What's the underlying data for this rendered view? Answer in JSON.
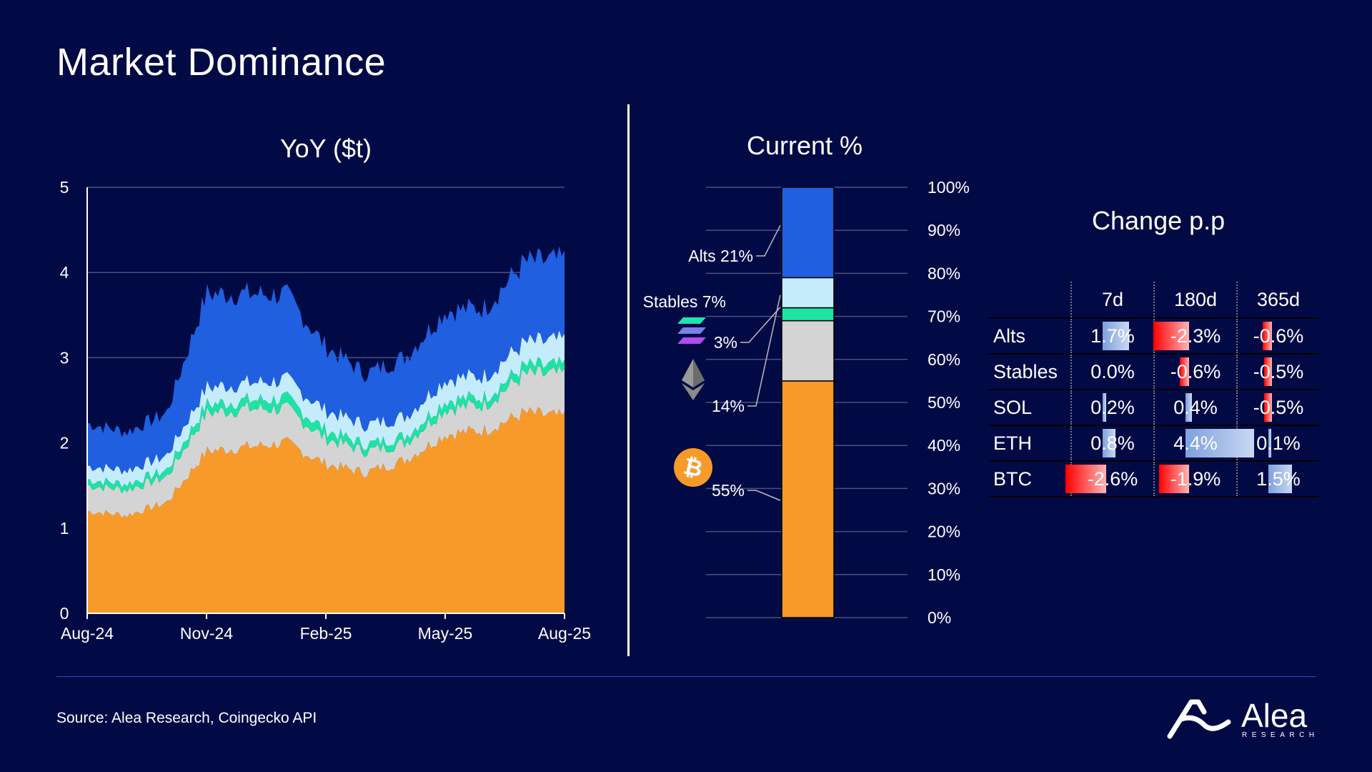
{
  "title": "Market Dominance",
  "source": "Source: Alea Research, Coingecko API",
  "logo": {
    "word": "Alea",
    "sub": "RESEARCH"
  },
  "colors": {
    "background": "#020a45",
    "btc": "#f79a2a",
    "eth": "#d4d4d4",
    "sol": "#1de3a3",
    "stables": "#c5ecfb",
    "alts": "#1f5fe0",
    "neg": "#ff0000",
    "pos": "#7ea1dd"
  },
  "chart_data": [
    {
      "type": "area",
      "title": "YoY ($t)",
      "stacked": true,
      "ylim": [
        0,
        5
      ],
      "yticks": [
        "0",
        "1",
        "2",
        "3",
        "4",
        "5"
      ],
      "xticks": [
        "Aug-24",
        "Nov-24",
        "Feb-25",
        "May-25",
        "Aug-25"
      ],
      "grid": true,
      "x": [
        "Aug-24",
        "Sep-24",
        "Oct-24",
        "Nov-24",
        "Dec-24",
        "Jan-25",
        "Feb-25",
        "Mar-25",
        "Apr-25",
        "May-25",
        "Jun-25",
        "Jul-25",
        "Aug-25"
      ],
      "series": [
        {
          "key": "btc",
          "values": [
            1.2,
            1.15,
            1.3,
            1.9,
            1.95,
            2.0,
            1.75,
            1.65,
            1.8,
            2.1,
            2.15,
            2.35,
            2.3
          ]
        },
        {
          "key": "eth",
          "values": [
            0.3,
            0.3,
            0.3,
            0.45,
            0.45,
            0.4,
            0.3,
            0.25,
            0.2,
            0.3,
            0.3,
            0.45,
            0.5
          ]
        },
        {
          "key": "sol",
          "values": [
            0.07,
            0.07,
            0.08,
            0.1,
            0.1,
            0.12,
            0.1,
            0.08,
            0.08,
            0.1,
            0.09,
            0.1,
            0.1
          ]
        },
        {
          "key": "stables",
          "values": [
            0.16,
            0.16,
            0.17,
            0.2,
            0.2,
            0.22,
            0.23,
            0.23,
            0.23,
            0.25,
            0.25,
            0.27,
            0.3
          ]
        },
        {
          "key": "alts",
          "values": [
            0.5,
            0.45,
            0.5,
            1.1,
            1.05,
            1.0,
            0.75,
            0.6,
            0.7,
            0.8,
            0.8,
            0.95,
            0.95
          ]
        }
      ]
    },
    {
      "type": "bar",
      "title": "Current %",
      "stacked": true,
      "ylim": [
        0,
        100
      ],
      "yticks": [
        "0%",
        "10%",
        "20%",
        "30%",
        "40%",
        "50%",
        "60%",
        "70%",
        "80%",
        "90%",
        "100%"
      ],
      "segments": [
        {
          "key": "btc",
          "value": 55,
          "label": "55%"
        },
        {
          "key": "eth",
          "value": 14,
          "label": "14%"
        },
        {
          "key": "sol",
          "value": 3,
          "label": "3%"
        },
        {
          "key": "stables",
          "value": 7,
          "label": "Stables 7%"
        },
        {
          "key": "alts",
          "value": 21,
          "label": "Alts 21%"
        }
      ]
    },
    {
      "type": "table",
      "title": "Change p.p",
      "columns": [
        "7d",
        "180d",
        "365d"
      ],
      "rows": [
        {
          "label": "Alts",
          "values": [
            1.7,
            -2.3,
            -0.6
          ],
          "text": [
            "1.7%",
            "-2.3%",
            "-0.6%"
          ]
        },
        {
          "label": "Stables",
          "values": [
            0.0,
            -0.6,
            -0.5
          ],
          "text": [
            "0.0%",
            "-0.6%",
            "-0.5%"
          ]
        },
        {
          "label": "SOL",
          "values": [
            0.2,
            0.4,
            -0.5
          ],
          "text": [
            "0.2%",
            "0.4%",
            "-0.5%"
          ]
        },
        {
          "label": "ETH",
          "values": [
            0.8,
            4.4,
            0.1
          ],
          "text": [
            "0.8%",
            "4.4%",
            "0.1%"
          ]
        },
        {
          "label": "BTC",
          "values": [
            -2.6,
            -1.9,
            1.5
          ],
          "text": [
            "-2.6%",
            "-1.9%",
            "1.5%"
          ]
        }
      ]
    }
  ]
}
